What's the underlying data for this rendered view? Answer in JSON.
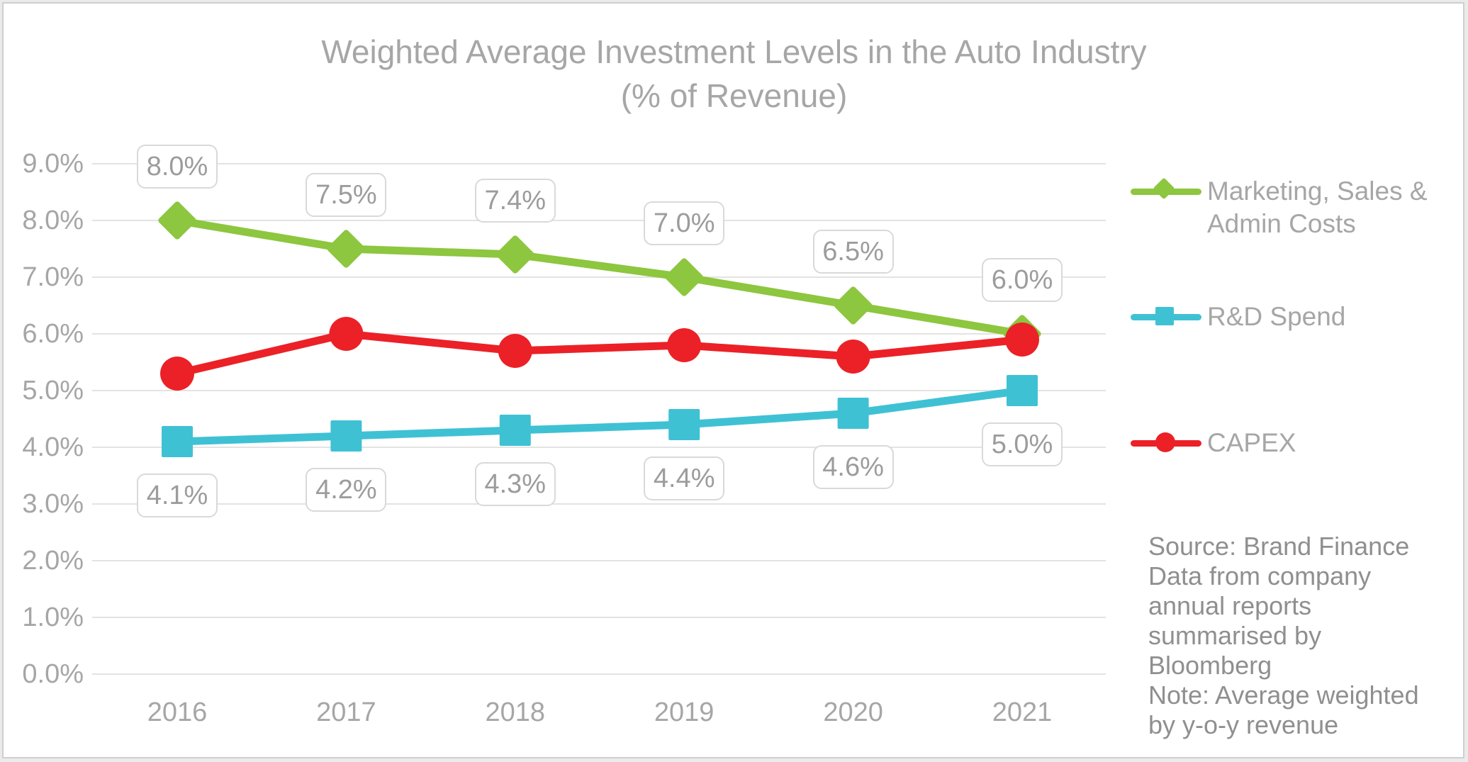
{
  "title": {
    "line1": "Weighted Average Investment Levels in the Auto Industry",
    "line2": "(% of Revenue)"
  },
  "chart_data": {
    "type": "line",
    "categories": [
      "2016",
      "2017",
      "2018",
      "2019",
      "2020",
      "2021"
    ],
    "series": [
      {
        "name": "Marketing, Sales & Admin Costs",
        "color": "#8DC63F",
        "marker": "diamond",
        "values": [
          8.0,
          7.5,
          7.4,
          7.0,
          6.5,
          6.0
        ],
        "data_labels": [
          "8.0%",
          "7.5%",
          "7.4%",
          "7.0%",
          "6.5%",
          "6.0%"
        ],
        "label_side": "above"
      },
      {
        "name": "R&D Spend",
        "color": "#3FC1D4",
        "marker": "square",
        "values": [
          4.1,
          4.2,
          4.3,
          4.4,
          4.6,
          5.0
        ],
        "data_labels": [
          "4.1%",
          "4.2%",
          "4.3%",
          "4.4%",
          "4.6%",
          "5.0%"
        ],
        "label_side": "below"
      },
      {
        "name": "CAPEX",
        "color": "#EB2127",
        "marker": "circle",
        "values": [
          5.3,
          6.0,
          5.7,
          5.8,
          5.6,
          5.9
        ],
        "data_labels": null,
        "label_side": null
      }
    ],
    "y_axis": {
      "tick_labels": [
        "0.0%",
        "1.0%",
        "2.0%",
        "3.0%",
        "4.0%",
        "5.0%",
        "6.0%",
        "7.0%",
        "8.0%",
        "9.0%"
      ],
      "min": 0,
      "max": 9,
      "unit": "%"
    },
    "grid": "horizontal",
    "legend_position": "right"
  },
  "source_note": {
    "lines": [
      "Source: Brand Finance",
      "Data from company",
      "annual reports",
      "summarised by",
      "Bloomberg",
      "Note: Average weighted",
      "by y-o-y revenue"
    ]
  }
}
